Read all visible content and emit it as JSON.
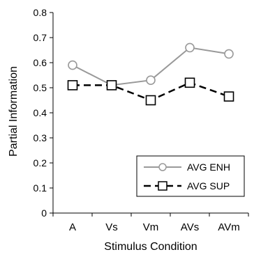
{
  "chart_data": {
    "type": "line",
    "title": "",
    "xlabel": "Stimulus Condition",
    "ylabel": "Partial Information",
    "categories": [
      "A",
      "Vs",
      "Vm",
      "AVs",
      "AVm"
    ],
    "ylim": [
      0,
      0.8
    ],
    "yticks": [
      0,
      0.1,
      0.2,
      0.3,
      0.4,
      0.5,
      0.6,
      0.7,
      0.8
    ],
    "ytick_labels": [
      "0",
      "0.1",
      "0.2",
      "0.3",
      "0.4",
      "0.5",
      "0.6",
      "0.7",
      "0.8"
    ],
    "grid": false,
    "legend_position": "bottom-right",
    "series": [
      {
        "name": "AVG ENH",
        "values": [
          0.59,
          0.51,
          0.53,
          0.66,
          0.635
        ],
        "color": "#999999",
        "line_style": "solid",
        "marker": "circle"
      },
      {
        "name": "AVG SUP",
        "values": [
          0.51,
          0.51,
          0.45,
          0.52,
          0.465
        ],
        "color": "#000000",
        "line_style": "dashed",
        "marker": "square"
      }
    ]
  }
}
